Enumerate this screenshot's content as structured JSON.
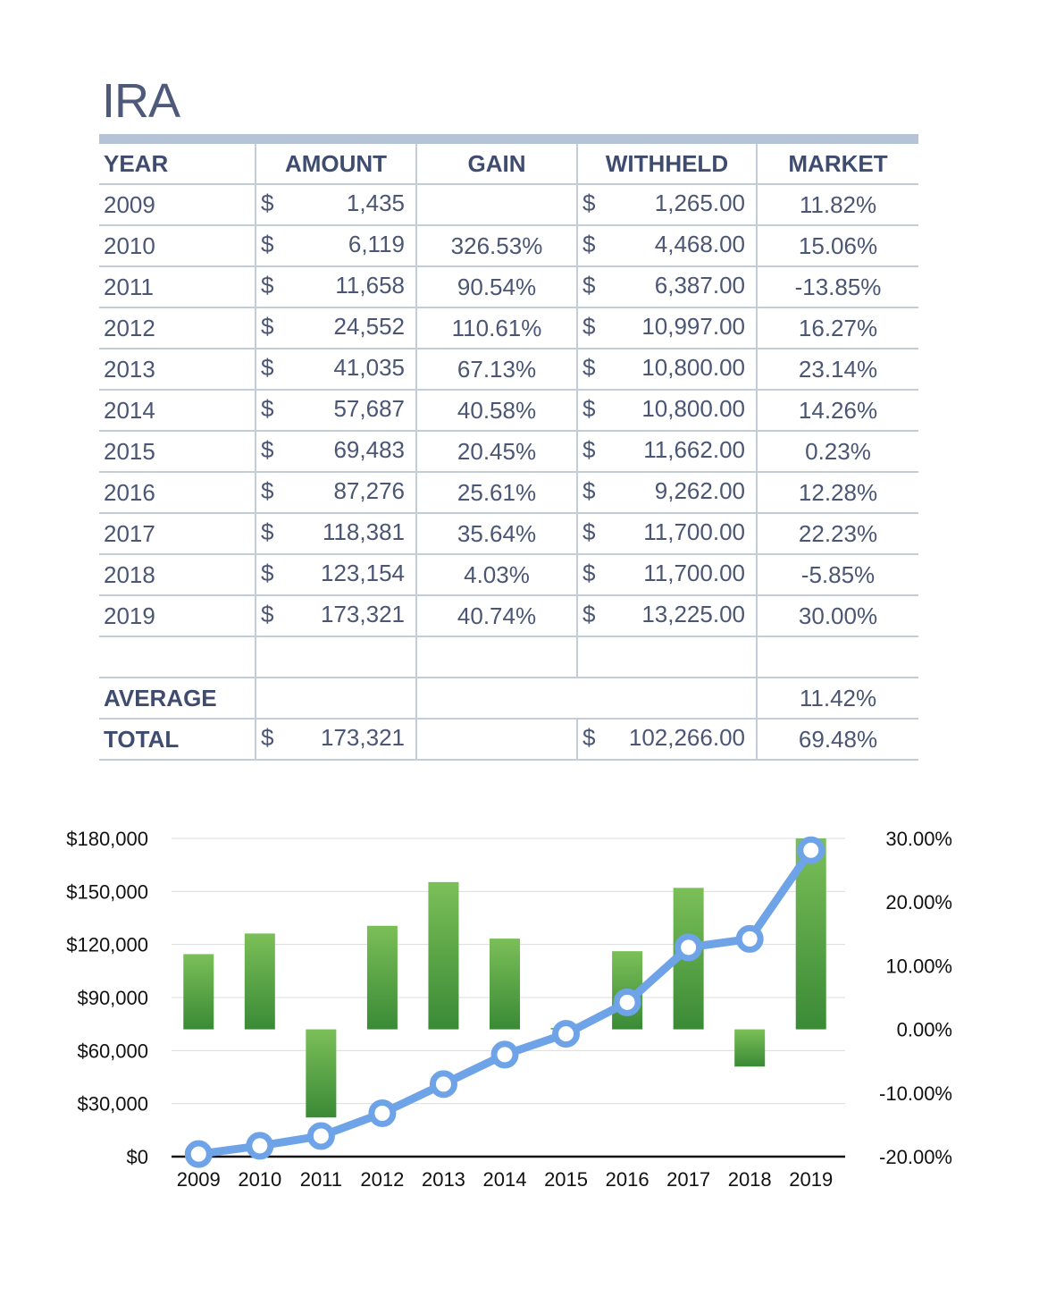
{
  "title": "IRA",
  "table": {
    "headers": [
      "YEAR",
      "AMOUNT",
      "GAIN",
      "WITHHELD",
      "MARKET"
    ],
    "rows": [
      {
        "year": "2009",
        "cur1": "$",
        "amount": "1,435",
        "gain": "",
        "cur2": "$",
        "withheld": "1,265.00",
        "market": "11.82%"
      },
      {
        "year": "2010",
        "cur1": "$",
        "amount": "6,119",
        "gain": "326.53%",
        "cur2": "$",
        "withheld": "4,468.00",
        "market": "15.06%"
      },
      {
        "year": "2011",
        "cur1": "$",
        "amount": "11,658",
        "gain": "90.54%",
        "cur2": "$",
        "withheld": "6,387.00",
        "market": "-13.85%"
      },
      {
        "year": "2012",
        "cur1": "$",
        "amount": "24,552",
        "gain": "110.61%",
        "cur2": "$",
        "withheld": "10,997.00",
        "market": "16.27%"
      },
      {
        "year": "2013",
        "cur1": "$",
        "amount": "41,035",
        "gain": "67.13%",
        "cur2": "$",
        "withheld": "10,800.00",
        "market": "23.14%"
      },
      {
        "year": "2014",
        "cur1": "$",
        "amount": "57,687",
        "gain": "40.58%",
        "cur2": "$",
        "withheld": "10,800.00",
        "market": "14.26%"
      },
      {
        "year": "2015",
        "cur1": "$",
        "amount": "69,483",
        "gain": "20.45%",
        "cur2": "$",
        "withheld": "11,662.00",
        "market": "0.23%"
      },
      {
        "year": "2016",
        "cur1": "$",
        "amount": "87,276",
        "gain": "25.61%",
        "cur2": "$",
        "withheld": "9,262.00",
        "market": "12.28%"
      },
      {
        "year": "2017",
        "cur1": "$",
        "amount": "118,381",
        "gain": "35.64%",
        "cur2": "$",
        "withheld": "11,700.00",
        "market": "22.23%"
      },
      {
        "year": "2018",
        "cur1": "$",
        "amount": "123,154",
        "gain": "4.03%",
        "cur2": "$",
        "withheld": "11,700.00",
        "market": "-5.85%"
      },
      {
        "year": "2019",
        "cur1": "$",
        "amount": "173,321",
        "gain": "40.74%",
        "cur2": "$",
        "withheld": "13,225.00",
        "market": "30.00%"
      }
    ],
    "average": {
      "label": "AVERAGE",
      "market": "11.42%"
    },
    "total": {
      "label": "TOTAL",
      "cur1": "$",
      "amount": "173,321",
      "cur2": "$",
      "withheld": "102,266.00",
      "market": "69.48%"
    }
  },
  "chart_data": {
    "type": "bar",
    "categories": [
      "2009",
      "2010",
      "2011",
      "2012",
      "2013",
      "2014",
      "2015",
      "2016",
      "2017",
      "2018",
      "2019"
    ],
    "series": [
      {
        "name": "",
        "type": "line",
        "axis": "left",
        "values": [
          1435,
          6119,
          11658,
          24552,
          41035,
          57687,
          69483,
          87276,
          118381,
          123154,
          173321
        ]
      },
      {
        "name": "",
        "type": "bar",
        "axis": "right",
        "values": [
          11.82,
          15.06,
          -13.85,
          16.27,
          23.14,
          14.26,
          0.23,
          12.28,
          22.23,
          -5.85,
          30.0
        ]
      }
    ],
    "ylim_left": [
      0,
      180000
    ],
    "ylim_right": [
      -20,
      30
    ],
    "yticks_left": [
      "$0",
      "$30,000",
      "$60,000",
      "$90,000",
      "$120,000",
      "$150,000",
      "$180,000"
    ],
    "yticks_right": [
      "-20.00%",
      "-10.00%",
      "0.00%",
      "10.00%",
      "20.00%",
      "30.00%"
    ],
    "grid": true,
    "colors": {
      "line": "#6fa3e8",
      "bar_top": "#7bbf58",
      "bar_bottom": "#3a8a36",
      "marker_fill": "#ffffff"
    }
  }
}
